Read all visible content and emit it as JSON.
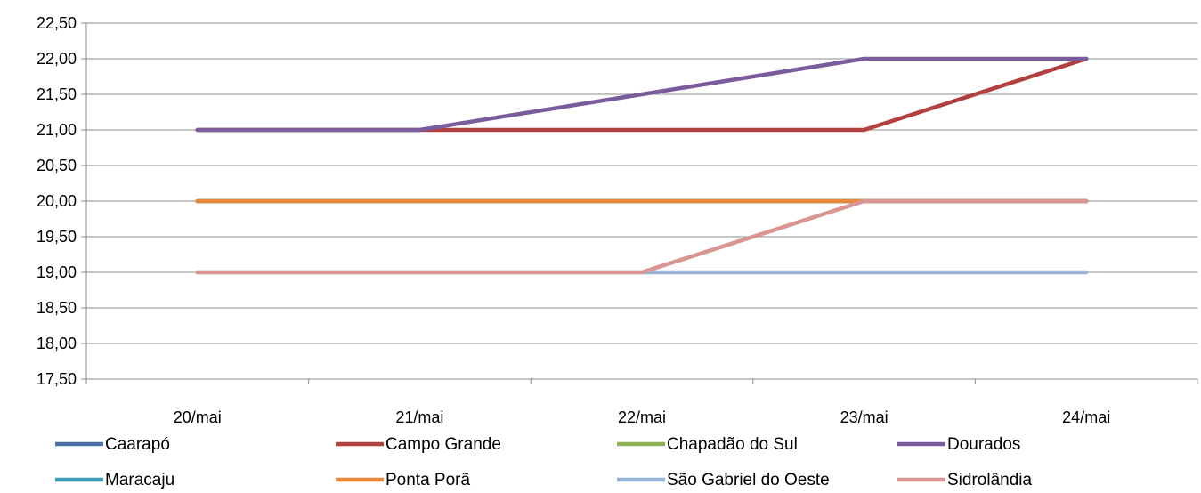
{
  "chart_data": {
    "type": "line",
    "title": "",
    "xlabel": "",
    "ylabel": "",
    "categories": [
      "20/mai",
      "21/mai",
      "22/mai",
      "23/mai",
      "24/mai"
    ],
    "ylim": [
      17.5,
      22.5
    ],
    "yticks": [
      "17,50",
      "18,00",
      "18,50",
      "19,00",
      "19,50",
      "20,00",
      "20,50",
      "21,00",
      "21,50",
      "22,00",
      "22,50"
    ],
    "grid": true,
    "legend_position": "bottom",
    "series": [
      {
        "name": "Caarapó",
        "color": "#4a6fa5",
        "values": [
          20,
          20,
          20,
          20,
          20
        ]
      },
      {
        "name": "Campo Grande",
        "color": "#b0413e",
        "values": [
          21,
          21,
          21,
          21,
          22
        ]
      },
      {
        "name": "Chapadão do Sul",
        "color": "#8db050",
        "values": [
          20,
          20,
          20,
          20,
          20
        ]
      },
      {
        "name": "Dourados",
        "color": "#7a5b9c",
        "values": [
          21,
          21,
          21.5,
          22,
          22
        ]
      },
      {
        "name": "Maracaju",
        "color": "#3f9eb5",
        "values": [
          20,
          20,
          20,
          20,
          20
        ]
      },
      {
        "name": "Ponta Porã",
        "color": "#e8883a",
        "values": [
          20,
          20,
          20,
          20,
          20
        ]
      },
      {
        "name": "São Gabriel do Oeste",
        "color": "#97b3d8",
        "values": [
          19,
          19,
          19,
          19,
          19
        ]
      },
      {
        "name": "Sidrolândia",
        "color": "#d99592",
        "values": [
          19,
          19,
          19,
          20,
          20
        ]
      }
    ]
  }
}
